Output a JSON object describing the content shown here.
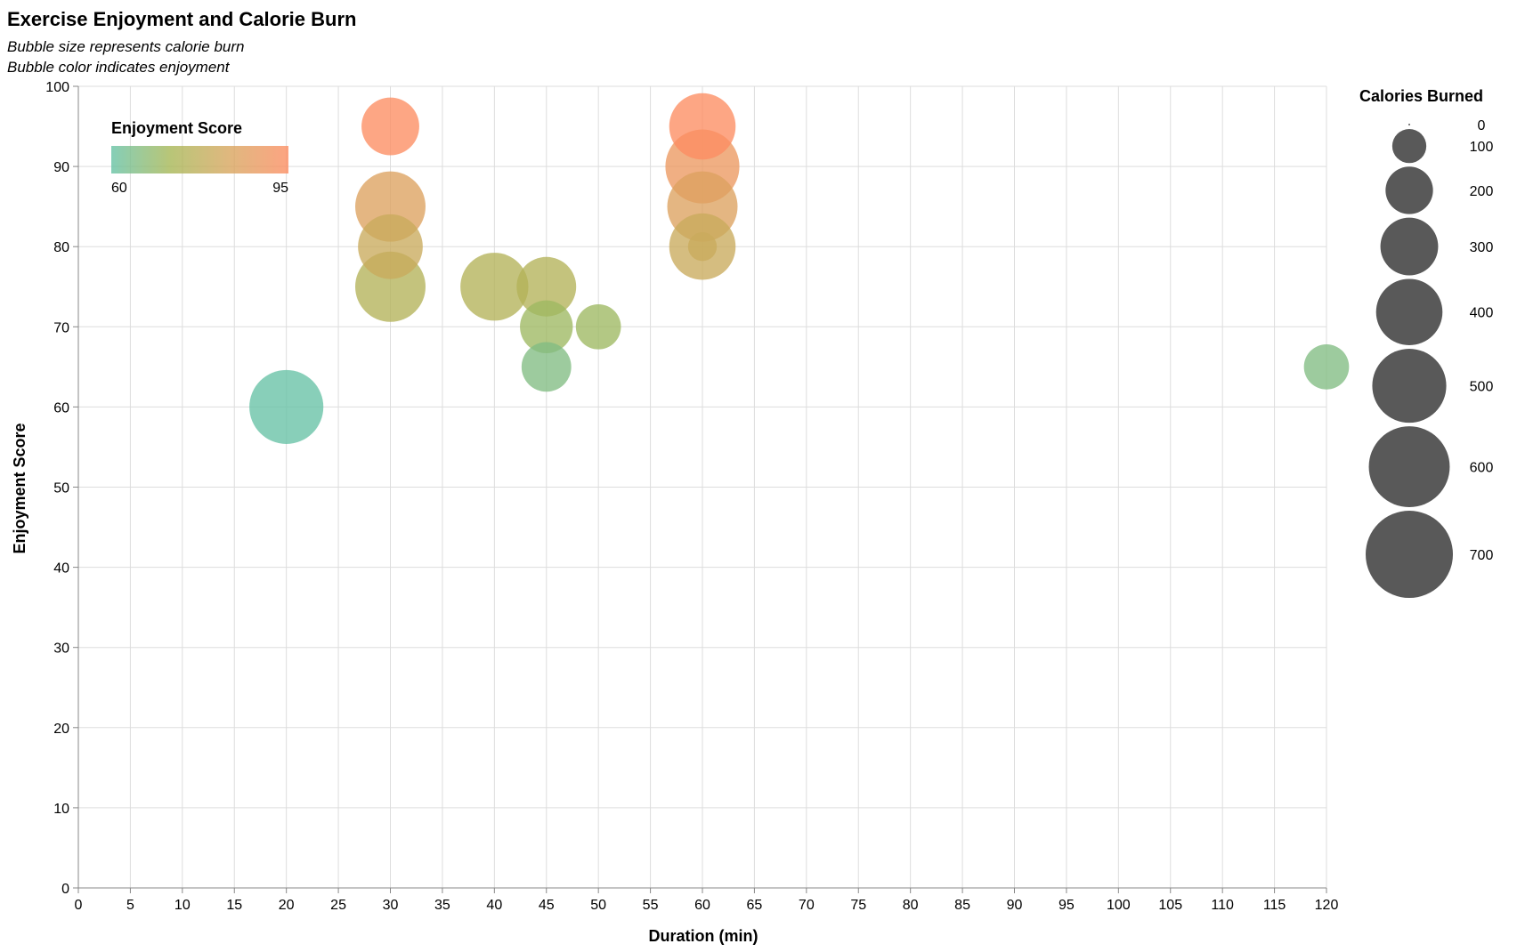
{
  "chart_data": {
    "type": "scatter",
    "title": "Exercise Enjoyment and Calorie Burn",
    "subtitle": [
      "Bubble size represents calorie burn",
      "Bubble color indicates enjoyment"
    ],
    "xlabel": "Duration (min)",
    "ylabel": "Enjoyment Score",
    "xlim": [
      0,
      120
    ],
    "ylim": [
      0,
      100
    ],
    "x_ticks": [
      0,
      5,
      10,
      15,
      20,
      25,
      30,
      35,
      40,
      45,
      50,
      55,
      60,
      65,
      70,
      75,
      80,
      85,
      90,
      95,
      100,
      105,
      110,
      115,
      120
    ],
    "y_ticks": [
      0,
      10,
      20,
      30,
      40,
      50,
      60,
      70,
      80,
      90,
      100
    ],
    "grid": true,
    "size_legend": {
      "title": "Calories Burned",
      "values": [
        0,
        100,
        200,
        300,
        400,
        500,
        600,
        700
      ],
      "color": "#595959"
    },
    "color_legend": {
      "title": "Enjoyment Score",
      "min": 60,
      "max": 95,
      "colors": [
        "#66c2a5",
        "#a6b756",
        "#d7a65e",
        "#fc8d62"
      ],
      "placement": "top-left"
    },
    "points": [
      {
        "x": 20,
        "y": 60,
        "calories": 500
      },
      {
        "x": 30,
        "y": 95,
        "calories": 300
      },
      {
        "x": 30,
        "y": 85,
        "calories": 450
      },
      {
        "x": 30,
        "y": 80,
        "calories": 380
      },
      {
        "x": 30,
        "y": 75,
        "calories": 450
      },
      {
        "x": 40,
        "y": 75,
        "calories": 420
      },
      {
        "x": 45,
        "y": 75,
        "calories": 320
      },
      {
        "x": 45,
        "y": 70,
        "calories": 250
      },
      {
        "x": 45,
        "y": 65,
        "calories": 220
      },
      {
        "x": 50,
        "y": 70,
        "calories": 180
      },
      {
        "x": 60,
        "y": 95,
        "calories": 400
      },
      {
        "x": 60,
        "y": 90,
        "calories": 500
      },
      {
        "x": 60,
        "y": 85,
        "calories": 450
      },
      {
        "x": 60,
        "y": 80,
        "calories": 400
      },
      {
        "x": 60,
        "y": 80,
        "calories": 70
      },
      {
        "x": 120,
        "y": 65,
        "calories": 180
      }
    ]
  }
}
